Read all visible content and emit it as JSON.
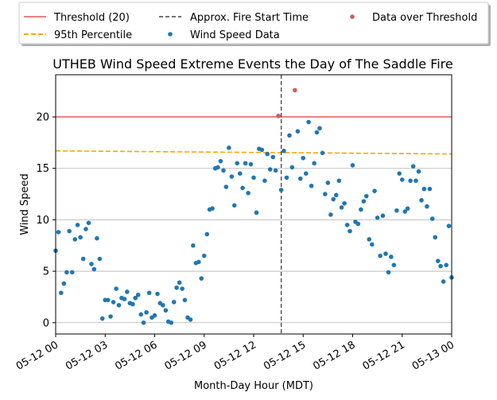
{
  "chart_data": {
    "type": "scatter",
    "title": "UTHEB Wind Speed Extreme Events the Day of The Saddle Fire",
    "xlabel": "Month-Day Hour (MDT)",
    "ylabel": "Wind Speed",
    "xlim": [
      0,
      24
    ],
    "ylim": [
      -1.1,
      24.1
    ],
    "x_ticks": [
      {
        "hour": 0,
        "label": "05-12 00"
      },
      {
        "hour": 3,
        "label": "05-12 03"
      },
      {
        "hour": 6,
        "label": "05-12 06"
      },
      {
        "hour": 9,
        "label": "05-12 09"
      },
      {
        "hour": 12,
        "label": "05-12 12"
      },
      {
        "hour": 15,
        "label": "05-12 15"
      },
      {
        "hour": 18,
        "label": "05-12 18"
      },
      {
        "hour": 21,
        "label": "05-12 21"
      },
      {
        "hour": 24,
        "label": "05-13 00"
      }
    ],
    "y_ticks": [
      0,
      5,
      10,
      15,
      20
    ],
    "grid": "horizontal",
    "legend_position": "above plot",
    "threshold": {
      "name": "Threshold (20)",
      "value": 20,
      "color": "#f08080"
    },
    "percentile_95": {
      "name": "95th Percentile",
      "start": 16.7,
      "end": 16.4,
      "color": "#ffa500"
    },
    "fire_start": {
      "name": "Approx. Fire Start Time",
      "hour": 13.67,
      "color": "#444444"
    },
    "series": [
      {
        "name": "Wind Speed Data",
        "color": "#1f77b4",
        "points": [
          [
            0.0,
            7.0
          ],
          [
            0.17,
            8.8
          ],
          [
            0.33,
            2.9
          ],
          [
            0.5,
            3.8
          ],
          [
            0.67,
            4.9
          ],
          [
            0.83,
            8.9
          ],
          [
            1.0,
            4.9
          ],
          [
            1.17,
            8.1
          ],
          [
            1.33,
            9.5
          ],
          [
            1.5,
            8.3
          ],
          [
            1.67,
            6.2
          ],
          [
            1.83,
            9.1
          ],
          [
            2.0,
            9.7
          ],
          [
            2.17,
            5.7
          ],
          [
            2.33,
            5.2
          ],
          [
            2.5,
            8.2
          ],
          [
            2.67,
            6.2
          ],
          [
            2.83,
            0.4
          ],
          [
            3.0,
            2.2
          ],
          [
            3.17,
            2.2
          ],
          [
            3.33,
            0.6
          ],
          [
            3.5,
            2.0
          ],
          [
            3.67,
            3.3
          ],
          [
            3.83,
            1.7
          ],
          [
            4.0,
            2.4
          ],
          [
            4.17,
            2.3
          ],
          [
            4.33,
            3.0
          ],
          [
            4.5,
            1.9
          ],
          [
            4.67,
            1.8
          ],
          [
            4.83,
            2.4
          ],
          [
            5.0,
            2.7
          ],
          [
            5.17,
            0.8
          ],
          [
            5.33,
            0.0
          ],
          [
            5.5,
            1.0
          ],
          [
            5.67,
            2.9
          ],
          [
            5.83,
            0.5
          ],
          [
            6.0,
            0.7
          ],
          [
            6.17,
            2.8
          ],
          [
            6.33,
            1.9
          ],
          [
            6.5,
            1.7
          ],
          [
            6.67,
            1.2
          ],
          [
            6.83,
            0.1
          ],
          [
            7.0,
            0.0
          ],
          [
            7.17,
            2.0
          ],
          [
            7.33,
            3.4
          ],
          [
            7.5,
            3.9
          ],
          [
            7.67,
            3.3
          ],
          [
            7.83,
            2.2
          ],
          [
            8.0,
            0.5
          ],
          [
            8.17,
            0.3
          ],
          [
            8.33,
            7.5
          ],
          [
            8.5,
            5.8
          ],
          [
            8.67,
            5.9
          ],
          [
            8.83,
            4.3
          ],
          [
            9.0,
            6.5
          ],
          [
            9.17,
            8.6
          ],
          [
            9.33,
            11.0
          ],
          [
            9.5,
            11.1
          ],
          [
            9.67,
            15.0
          ],
          [
            9.83,
            15.1
          ],
          [
            10.0,
            15.7
          ],
          [
            10.17,
            14.8
          ],
          [
            10.33,
            13.2
          ],
          [
            10.5,
            17.0
          ],
          [
            10.67,
            14.2
          ],
          [
            10.83,
            11.4
          ],
          [
            11.0,
            15.5
          ],
          [
            11.17,
            14.5
          ],
          [
            11.33,
            13.1
          ],
          [
            11.5,
            15.5
          ],
          [
            11.67,
            12.6
          ],
          [
            11.83,
            15.4
          ],
          [
            12.0,
            14.1
          ],
          [
            12.17,
            10.7
          ],
          [
            12.33,
            16.9
          ],
          [
            12.5,
            16.8
          ],
          [
            12.67,
            13.8
          ],
          [
            12.83,
            16.4
          ],
          [
            13.0,
            14.9
          ],
          [
            13.17,
            16.1
          ],
          [
            13.33,
            14.8
          ],
          [
            13.67,
            12.9
          ],
          [
            13.83,
            16.7
          ],
          [
            14.0,
            14.1
          ],
          [
            14.17,
            18.2
          ],
          [
            14.33,
            15.1
          ],
          [
            14.67,
            18.6
          ],
          [
            14.83,
            14.0
          ],
          [
            15.0,
            16.0
          ],
          [
            15.17,
            14.5
          ],
          [
            15.33,
            19.5
          ],
          [
            15.5,
            13.3
          ],
          [
            15.67,
            15.5
          ],
          [
            15.83,
            18.5
          ],
          [
            16.0,
            18.9
          ],
          [
            16.17,
            16.5
          ],
          [
            16.33,
            12.5
          ],
          [
            16.5,
            13.6
          ],
          [
            16.67,
            10.5
          ],
          [
            16.83,
            12.0
          ],
          [
            17.0,
            12.4
          ],
          [
            17.17,
            13.8
          ],
          [
            17.33,
            11.2
          ],
          [
            17.5,
            11.6
          ],
          [
            17.67,
            9.5
          ],
          [
            17.83,
            8.9
          ],
          [
            18.0,
            15.3
          ],
          [
            18.17,
            9.8
          ],
          [
            18.33,
            9.6
          ],
          [
            18.5,
            11.0
          ],
          [
            18.67,
            11.8
          ],
          [
            18.83,
            12.3
          ],
          [
            19.0,
            8.1
          ],
          [
            19.17,
            7.6
          ],
          [
            19.33,
            12.8
          ],
          [
            19.5,
            10.2
          ],
          [
            19.67,
            6.5
          ],
          [
            19.83,
            10.4
          ],
          [
            20.0,
            6.7
          ],
          [
            20.17,
            4.9
          ],
          [
            20.33,
            6.4
          ],
          [
            20.5,
            5.6
          ],
          [
            20.67,
            10.9
          ],
          [
            20.83,
            14.5
          ],
          [
            21.0,
            13.9
          ],
          [
            21.17,
            10.8
          ],
          [
            21.33,
            11.1
          ],
          [
            21.5,
            13.8
          ],
          [
            21.67,
            15.2
          ],
          [
            21.83,
            13.8
          ],
          [
            22.0,
            14.7
          ],
          [
            22.17,
            11.9
          ],
          [
            22.33,
            13.0
          ],
          [
            22.5,
            11.3
          ],
          [
            22.67,
            13.0
          ],
          [
            22.83,
            10.1
          ],
          [
            23.0,
            8.3
          ],
          [
            23.17,
            6.0
          ],
          [
            23.33,
            5.5
          ],
          [
            23.5,
            4.0
          ],
          [
            23.67,
            5.6
          ],
          [
            23.83,
            9.4
          ],
          [
            24.0,
            4.4
          ]
        ]
      },
      {
        "name": "Data over Threshold",
        "color": "#cd5c5c",
        "points": [
          [
            13.5,
            20.1
          ],
          [
            14.5,
            22.6
          ]
        ]
      }
    ]
  }
}
